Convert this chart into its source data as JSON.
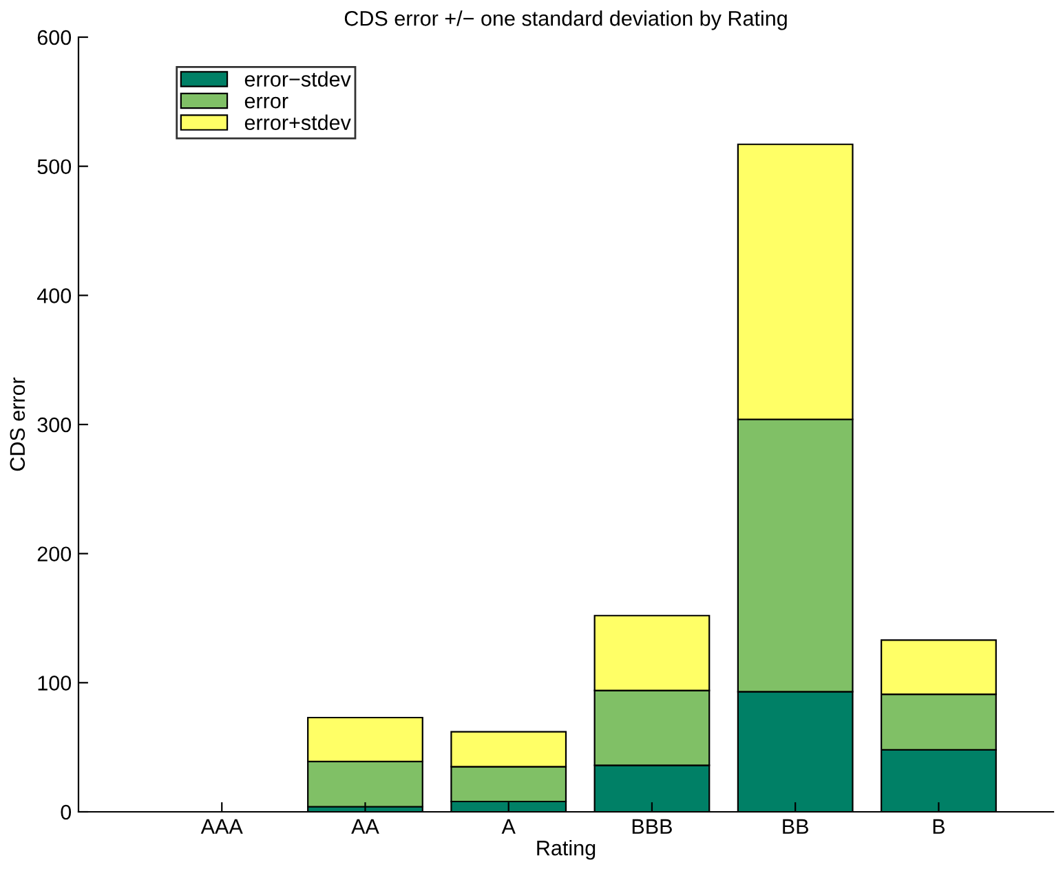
{
  "chart_data": {
    "type": "bar",
    "stacked": true,
    "title": "CDS error +/− one standard deviation by Rating",
    "xlabel": "Rating",
    "ylabel": "CDS error",
    "categories": [
      "AAA",
      "AA",
      "A",
      "BBB",
      "BB",
      "B"
    ],
    "series": [
      {
        "name": "error−stdev",
        "color": "#008066",
        "values": [
          0,
          4,
          8,
          36,
          93,
          48
        ]
      },
      {
        "name": "error",
        "color": "#80c066",
        "values": [
          0,
          35,
          27,
          58,
          211,
          43
        ]
      },
      {
        "name": "error+stdev",
        "color": "#ffff66",
        "values": [
          0,
          34,
          27,
          58,
          213,
          42
        ]
      }
    ],
    "ylim": [
      0,
      600
    ],
    "yticks": [
      0,
      100,
      200,
      300,
      400,
      500,
      600
    ],
    "legend": "top left",
    "grid": false
  }
}
